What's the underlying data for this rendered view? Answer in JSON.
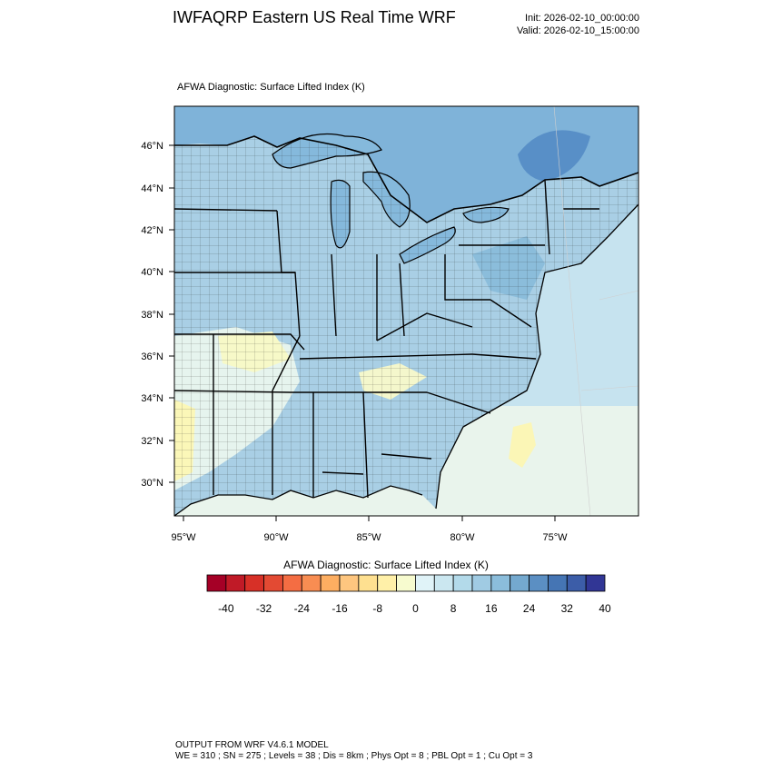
{
  "header": {
    "title": "IWFAQRP Eastern US Real Time WRF",
    "init": "Init: 2026-02-10_00:00:00",
    "valid": "Valid: 2026-02-10_15:00:00"
  },
  "map": {
    "field_label": "AFWA Diagnostic: Surface Lifted Index   (K)",
    "lat_labels": [
      "46°N",
      "44°N",
      "42°N",
      "40°N",
      "38°N",
      "36°N",
      "34°N",
      "32°N",
      "30°N"
    ],
    "lon_labels": [
      "95°W",
      "90°W",
      "85°W",
      "80°W",
      "75°W"
    ],
    "colors": {
      "land_base": "#a9cfe5",
      "ocean_base": "#e9f4ec",
      "great_lakes": "#85b9dc",
      "canada": "#7fb3d9"
    }
  },
  "colorbar": {
    "title": "AFWA Diagnostic: Surface Lifted Index  (K)",
    "tick_labels": [
      "-40",
      "-32",
      "-24",
      "-16",
      "-8",
      "0",
      "8",
      "16",
      "24",
      "32",
      "40"
    ],
    "colors": [
      "#a50026",
      "#c01a27",
      "#d73027",
      "#e34a33",
      "#f46d43",
      "#f88d52",
      "#fdae61",
      "#fec67f",
      "#fee090",
      "#fff0a8",
      "#f7fbcf",
      "#e0f3f8",
      "#cbe7f0",
      "#b3daea",
      "#a0cbe3",
      "#8bbddb",
      "#74a9cf",
      "#5b8fc3",
      "#4575b4",
      "#3c5da8",
      "#313695"
    ]
  },
  "footer": {
    "line1": "OUTPUT FROM WRF V4.6.1 MODEL",
    "line2": "WE = 310 ; SN = 275 ; Levels = 38 ; Dis = 8km ; Phys Opt = 8 ; PBL Opt = 1 ; Cu Opt = 3"
  }
}
